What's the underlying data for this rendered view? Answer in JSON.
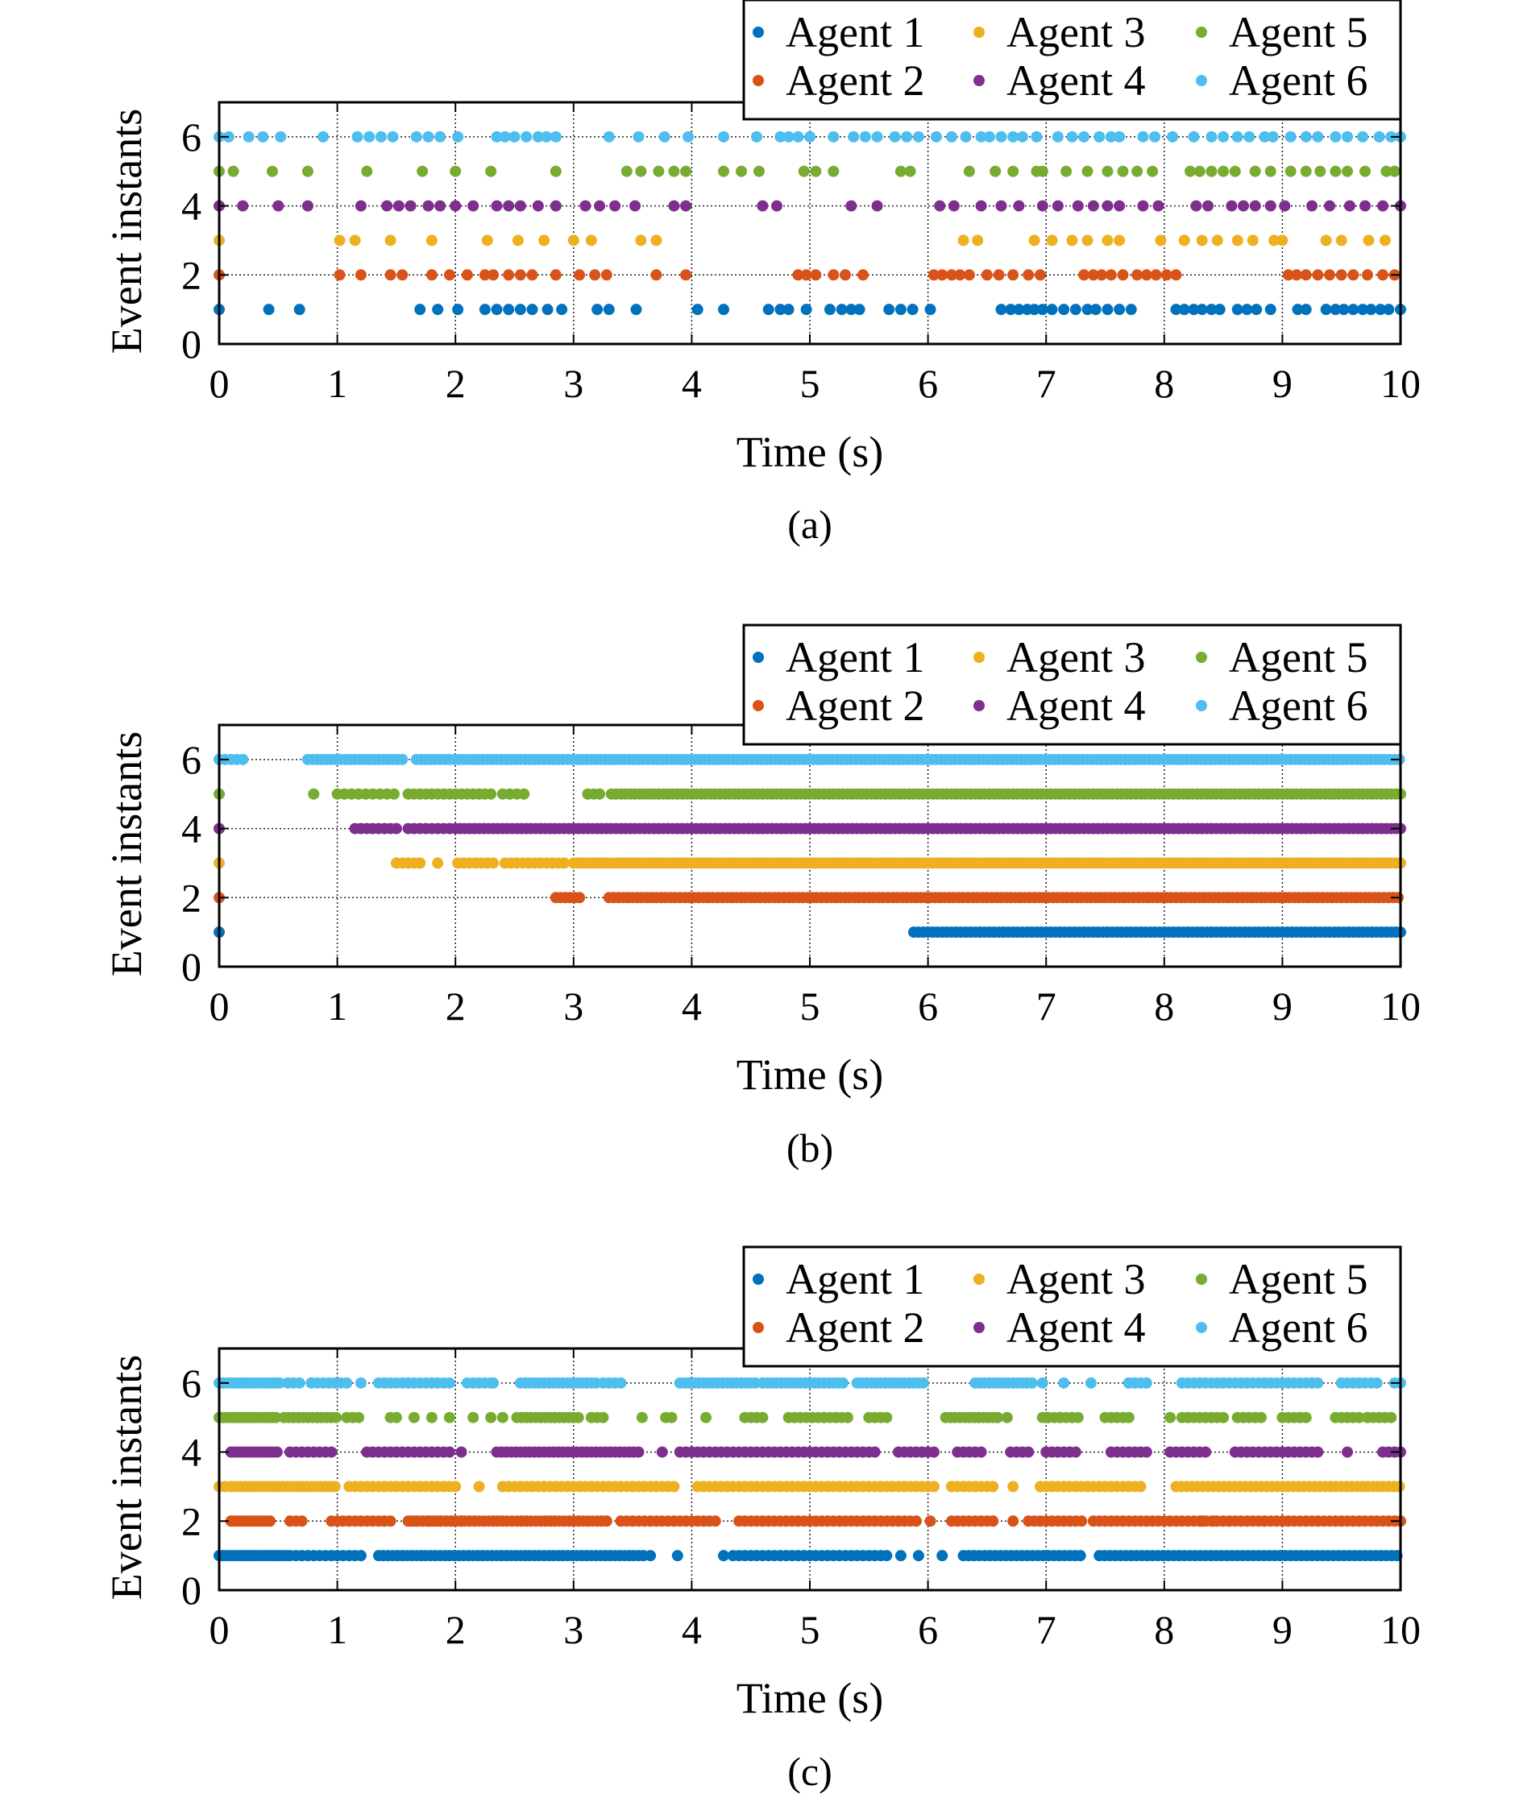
{
  "colors": {
    "Agent 1": "#0072BD",
    "Agent 2": "#D95319",
    "Agent 3": "#EDB120",
    "Agent 4": "#7E2F8E",
    "Agent 5": "#77AC30",
    "Agent 6": "#4DBEEE"
  },
  "chart_data": [
    {
      "type": "scatter",
      "caption": "(a)",
      "xlabel": "Time (s)",
      "ylabel": "Event instants",
      "xlim": [
        0,
        10
      ],
      "ylim": [
        0,
        7
      ],
      "xticks": [
        0,
        1,
        2,
        3,
        4,
        5,
        6,
        7,
        8,
        9,
        10
      ],
      "yticks": [
        0,
        2,
        4,
        6
      ],
      "grid": true,
      "legend": "top-right, 3 columns",
      "series": [
        {
          "name": "Agent 1",
          "y": 1,
          "x": [
            0,
            0.42,
            0.68,
            1.7,
            1.85,
            2.02,
            2.25,
            2.35,
            2.45,
            2.55,
            2.65,
            2.78,
            2.9,
            3.2,
            3.3,
            3.53,
            4.05,
            4.27,
            4.65,
            4.75,
            4.82,
            4.97,
            5.17,
            5.27,
            5.35,
            5.42,
            5.67,
            5.77,
            5.87,
            6.02,
            6.62,
            6.7,
            6.77,
            6.84,
            6.9,
            6.97,
            7.05,
            7.15,
            7.25,
            7.35,
            7.42,
            7.52,
            7.62,
            7.72,
            8.1,
            8.17,
            8.25,
            8.32,
            8.4,
            8.47,
            8.62,
            8.7,
            8.78,
            8.9,
            9.13,
            9.2,
            9.37,
            9.45,
            9.52,
            9.6,
            9.68,
            9.75,
            9.83,
            9.9,
            10
          ]
        },
        {
          "name": "Agent 2",
          "y": 2,
          "x": [
            0,
            1.02,
            1.2,
            1.45,
            1.55,
            1.8,
            1.95,
            2.1,
            2.25,
            2.32,
            2.45,
            2.55,
            2.65,
            2.85,
            3.05,
            3.18,
            3.28,
            3.7,
            3.95,
            4.9,
            4.97,
            5.05,
            5.2,
            5.3,
            5.45,
            6.05,
            6.12,
            6.2,
            6.27,
            6.35,
            6.5,
            6.6,
            6.72,
            6.85,
            6.95,
            7.32,
            7.4,
            7.47,
            7.55,
            7.65,
            7.77,
            7.85,
            7.93,
            8.02,
            8.1,
            9.05,
            9.12,
            9.2,
            9.3,
            9.4,
            9.5,
            9.6,
            9.72,
            9.85,
            9.95
          ]
        },
        {
          "name": "Agent 3",
          "y": 3,
          "x": [
            0,
            1.02,
            1.15,
            1.45,
            1.8,
            2.27,
            2.53,
            2.75,
            3.0,
            3.15,
            3.57,
            3.7,
            6.3,
            6.42,
            6.9,
            7.05,
            7.22,
            7.35,
            7.52,
            7.62,
            7.97,
            8.17,
            8.32,
            8.45,
            8.62,
            8.75,
            8.93,
            9.0,
            9.37,
            9.5,
            9.73,
            9.87
          ]
        },
        {
          "name": "Agent 4",
          "y": 4,
          "x": [
            0,
            0.2,
            0.5,
            0.75,
            1.2,
            1.42,
            1.52,
            1.62,
            1.77,
            1.87,
            2.0,
            2.15,
            2.35,
            2.45,
            2.55,
            2.7,
            2.85,
            3.1,
            3.22,
            3.35,
            3.52,
            3.85,
            3.95,
            4.6,
            4.72,
            5.35,
            5.57,
            6.1,
            6.22,
            6.45,
            6.62,
            6.77,
            6.97,
            7.1,
            7.27,
            7.4,
            7.52,
            7.62,
            7.82,
            7.95,
            8.27,
            8.37,
            8.57,
            8.67,
            8.77,
            8.9,
            9.02,
            9.25,
            9.4,
            9.57,
            9.7,
            9.85,
            10
          ]
        },
        {
          "name": "Agent 5",
          "y": 5,
          "x": [
            0,
            0.12,
            0.45,
            0.75,
            1.25,
            1.72,
            2.0,
            2.3,
            2.85,
            3.45,
            3.57,
            3.72,
            3.85,
            3.95,
            4.27,
            4.42,
            4.57,
            4.95,
            5.05,
            5.2,
            5.77,
            5.85,
            6.35,
            6.57,
            6.72,
            6.92,
            6.97,
            7.17,
            7.35,
            7.52,
            7.65,
            7.77,
            7.9,
            8.22,
            8.3,
            8.4,
            8.5,
            8.6,
            8.77,
            8.9,
            9.07,
            9.2,
            9.32,
            9.45,
            9.55,
            9.7,
            9.88,
            9.95
          ]
        },
        {
          "name": "Agent 6",
          "y": 6,
          "x": [
            0,
            0.08,
            0.25,
            0.37,
            0.52,
            0.88,
            1.17,
            1.27,
            1.37,
            1.47,
            1.67,
            1.77,
            1.87,
            2.02,
            2.35,
            2.42,
            2.5,
            2.6,
            2.7,
            2.77,
            2.85,
            3.3,
            3.55,
            3.77,
            3.97,
            4.27,
            4.55,
            4.75,
            4.82,
            4.9,
            5.0,
            5.2,
            5.37,
            5.47,
            5.57,
            5.72,
            5.82,
            5.92,
            6.07,
            6.2,
            6.32,
            6.45,
            6.52,
            6.62,
            6.72,
            6.8,
            6.92,
            7.1,
            7.22,
            7.32,
            7.45,
            7.55,
            7.62,
            7.82,
            7.92,
            8.07,
            8.25,
            8.4,
            8.5,
            8.62,
            8.72,
            8.85,
            8.92,
            9.07,
            9.2,
            9.3,
            9.45,
            9.55,
            9.68,
            9.82,
            9.92,
            10
          ]
        }
      ]
    },
    {
      "type": "scatter",
      "caption": "(b)",
      "xlabel": "Time (s)",
      "ylabel": "Event instants",
      "xlim": [
        0,
        10
      ],
      "ylim": [
        0,
        7
      ],
      "xticks": [
        0,
        1,
        2,
        3,
        4,
        5,
        6,
        7,
        8,
        9,
        10
      ],
      "yticks": [
        0,
        2,
        4,
        6
      ],
      "grid": true,
      "legend": "top-right, 3 columns",
      "segments_note": "dense event runs [start, end, step] in seconds",
      "series": [
        {
          "name": "Agent 1",
          "y": 1,
          "points": [
            0
          ],
          "runs": [
            [
              5.88,
              10,
              0.04
            ]
          ]
        },
        {
          "name": "Agent 2",
          "y": 2,
          "points": [
            0
          ],
          "runs": [
            [
              2.85,
              3.05,
              0.04
            ],
            [
              3.3,
              10,
              0.04
            ]
          ]
        },
        {
          "name": "Agent 3",
          "y": 3,
          "points": [
            0,
            1.85
          ],
          "runs": [
            [
              1.5,
              1.7,
              0.05
            ],
            [
              2.02,
              2.32,
              0.05
            ],
            [
              2.42,
              2.92,
              0.05
            ],
            [
              3.0,
              10,
              0.04
            ]
          ]
        },
        {
          "name": "Agent 4",
          "y": 4,
          "points": [
            0
          ],
          "runs": [
            [
              1.15,
              1.5,
              0.05
            ],
            [
              1.6,
              1.95,
              0.05
            ],
            [
              2.0,
              10,
              0.04
            ]
          ]
        },
        {
          "name": "Agent 5",
          "y": 5,
          "points": [
            0,
            0.8
          ],
          "runs": [
            [
              1.0,
              1.5,
              0.06
            ],
            [
              1.6,
              2.3,
              0.05
            ],
            [
              2.4,
              2.6,
              0.06
            ],
            [
              3.12,
              3.25,
              0.05
            ],
            [
              3.32,
              10,
              0.04
            ]
          ]
        },
        {
          "name": "Agent 6",
          "y": 6,
          "points": [
            0
          ],
          "runs": [
            [
              0,
              0.22,
              0.05
            ],
            [
              0.75,
              1.57,
              0.04
            ],
            [
              1.67,
              10,
              0.04
            ]
          ]
        }
      ]
    },
    {
      "type": "scatter",
      "caption": "(c)",
      "xlabel": "Time (s)",
      "ylabel": "Event instants",
      "xlim": [
        0,
        10
      ],
      "ylim": [
        0,
        7
      ],
      "xticks": [
        0,
        1,
        2,
        3,
        4,
        5,
        6,
        7,
        8,
        9,
        10
      ],
      "yticks": [
        0,
        2,
        4,
        6
      ],
      "grid": true,
      "legend": "top-right, 3 columns",
      "segments_note": "dense event runs [start, end, step] in seconds",
      "series": [
        {
          "name": "Agent 1",
          "y": 1,
          "points": [
            3.65,
            3.88,
            4.27,
            5.77,
            5.92,
            6.12
          ],
          "runs": [
            [
              0,
              0.6,
              0.03
            ],
            [
              0.65,
              1.2,
              0.05
            ],
            [
              1.35,
              3.6,
              0.04
            ],
            [
              4.35,
              5.5,
              0.05
            ],
            [
              5.55,
              5.68,
              0.05
            ],
            [
              6.3,
              7.3,
              0.045
            ],
            [
              7.45,
              10,
              0.045
            ]
          ]
        },
        {
          "name": "Agent 2",
          "y": 2,
          "points": [
            2.05,
            6.02,
            6.55,
            6.72,
            8.32,
            8.42
          ],
          "runs": [
            [
              0.1,
              0.45,
              0.03
            ],
            [
              0.6,
              0.7,
              0.05
            ],
            [
              0.95,
              1.45,
              0.05
            ],
            [
              1.62,
              2.0,
              0.05
            ],
            [
              1.6,
              3.3,
              0.04
            ],
            [
              3.4,
              4.2,
              0.05
            ],
            [
              4.4,
              5.9,
              0.05
            ],
            [
              6.2,
              6.5,
              0.05
            ],
            [
              6.85,
              7.3,
              0.05
            ],
            [
              7.4,
              9.92,
              0.05
            ],
            [
              9.95,
              10,
              0.05
            ]
          ]
        },
        {
          "name": "Agent 3",
          "y": 3,
          "points": [
            2.2,
            6.72
          ],
          "runs": [
            [
              0,
              0.05,
              0.05
            ],
            [
              0.1,
              1.0,
              0.04
            ],
            [
              1.1,
              2.02,
              0.05
            ],
            [
              2.4,
              3.85,
              0.05
            ],
            [
              4.05,
              6.05,
              0.05
            ],
            [
              6.2,
              6.55,
              0.05
            ],
            [
              6.95,
              7.8,
              0.05
            ],
            [
              8.1,
              10,
              0.045
            ]
          ]
        },
        {
          "name": "Agent 4",
          "y": 4,
          "points": [
            2.05,
            3.75,
            4.9,
            9.55
          ],
          "runs": [
            [
              0.1,
              0.5,
              0.03
            ],
            [
              0.6,
              0.95,
              0.05
            ],
            [
              1.25,
              1.95,
              0.05
            ],
            [
              2.35,
              3.55,
              0.04
            ],
            [
              3.9,
              4.85,
              0.05
            ],
            [
              4.95,
              5.55,
              0.05
            ],
            [
              5.75,
              6.05,
              0.05
            ],
            [
              6.25,
              6.45,
              0.05
            ],
            [
              6.7,
              6.85,
              0.05
            ],
            [
              7.0,
              7.25,
              0.05
            ],
            [
              7.55,
              7.85,
              0.05
            ],
            [
              8.05,
              8.35,
              0.05
            ],
            [
              8.6,
              9.3,
              0.05
            ],
            [
              9.85,
              10,
              0.05
            ]
          ]
        },
        {
          "name": "Agent 5",
          "y": 5,
          "points": [
            1.65,
            1.8,
            1.95,
            2.15,
            2.3,
            2.4,
            3.58,
            4.12,
            6.67,
            7.0,
            7.12,
            8.05
          ],
          "runs": [
            [
              0,
              0.5,
              0.03
            ],
            [
              0.55,
              1.0,
              0.04
            ],
            [
              1.08,
              1.18,
              0.05
            ],
            [
              1.45,
              1.5,
              0.05
            ],
            [
              2.52,
              3.05,
              0.04
            ],
            [
              3.15,
              3.25,
              0.05
            ],
            [
              3.78,
              3.85,
              0.05
            ],
            [
              4.45,
              4.6,
              0.05
            ],
            [
              4.82,
              5.35,
              0.05
            ],
            [
              5.5,
              5.65,
              0.05
            ],
            [
              6.15,
              6.6,
              0.04
            ],
            [
              6.97,
              7.3,
              0.05
            ],
            [
              7.5,
              7.7,
              0.05
            ],
            [
              8.15,
              8.5,
              0.05
            ],
            [
              8.62,
              8.82,
              0.05
            ],
            [
              9.0,
              9.2,
              0.05
            ],
            [
              9.45,
              9.65,
              0.05
            ],
            [
              9.72,
              9.92,
              0.05
            ]
          ]
        },
        {
          "name": "Agent 6",
          "y": 6,
          "points": [
            1.2,
            1.35,
            2.32,
            6.97,
            7.15,
            7.38,
            7.7
          ],
          "runs": [
            [
              0,
              0.52,
              0.03
            ],
            [
              0.58,
              0.72,
              0.05
            ],
            [
              0.78,
              1.1,
              0.05
            ],
            [
              1.4,
              1.7,
              0.05
            ],
            [
              1.75,
              1.98,
              0.05
            ],
            [
              2.1,
              2.3,
              0.05
            ],
            [
              2.55,
              3.2,
              0.04
            ],
            [
              3.25,
              3.4,
              0.05
            ],
            [
              3.9,
              4.55,
              0.04
            ],
            [
              4.6,
              5.3,
              0.04
            ],
            [
              5.4,
              5.98,
              0.04
            ],
            [
              6.4,
              6.9,
              0.04
            ],
            [
              7.7,
              7.85,
              0.05
            ],
            [
              8.15,
              8.95,
              0.05
            ],
            [
              9.0,
              9.3,
              0.05
            ],
            [
              9.5,
              9.8,
              0.05
            ],
            [
              9.95,
              10,
              0.05
            ]
          ]
        }
      ]
    }
  ]
}
